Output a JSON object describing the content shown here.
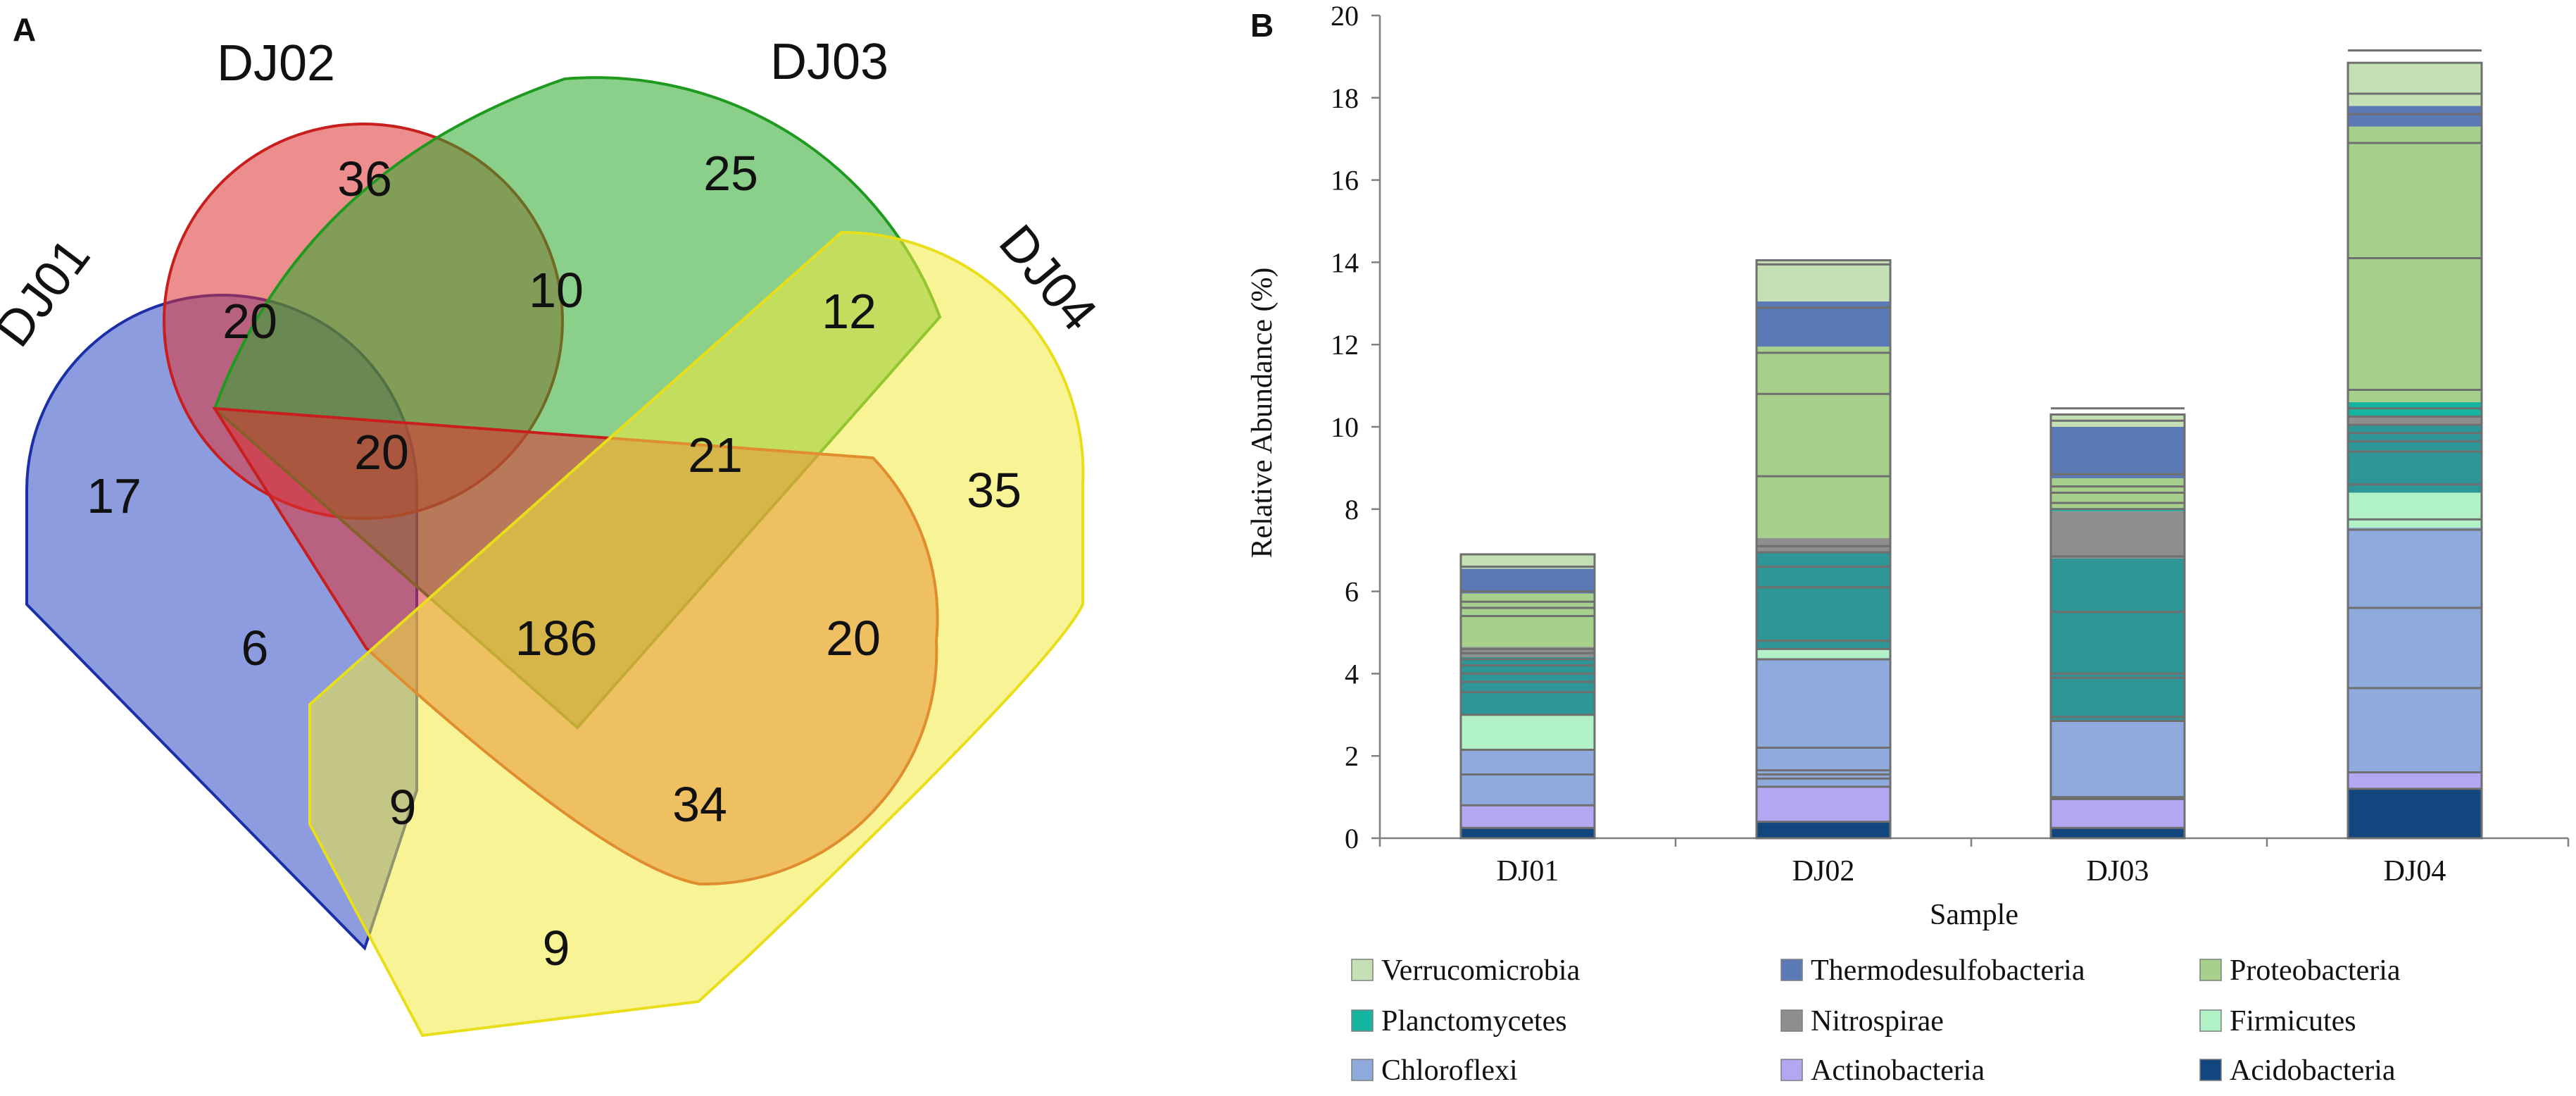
{
  "panel_a": {
    "label": "A",
    "sets": [
      {
        "name": "DJ01",
        "color": "#2f49c4",
        "stroke": "#1a2fa8"
      },
      {
        "name": "DJ02",
        "color": "#dd3232",
        "stroke": "#c81e1e"
      },
      {
        "name": "DJ03",
        "color": "#2aaa2a",
        "stroke": "#1f9a1f"
      },
      {
        "name": "DJ04",
        "color": "#f2ea3c",
        "stroke": "#e8de1a"
      }
    ],
    "region_counts": {
      "dj02_only": "36",
      "dj03_only": "25",
      "dj01_only": "17",
      "dj04_only": "35",
      "dj01_dj02": "20",
      "dj02_dj03": "10",
      "dj03_dj04": "12",
      "dj01_dj02_dj03": "20",
      "dj02_dj03_dj04": "21",
      "all_four": "186",
      "dj01_dj03": "6",
      "dj02_dj04": "20",
      "dj01_dj03_dj04": "9",
      "dj01_dj02_dj04": "34",
      "dj01_dj04": "9"
    }
  },
  "panel_b": {
    "label": "B"
  },
  "chart_data": {
    "type": "bar",
    "stacked": true,
    "title": "",
    "xlabel": "Sample",
    "ylabel": "Relative Abundance (%)",
    "ylim": [
      0,
      20
    ],
    "yticks": [
      0,
      2,
      4,
      6,
      8,
      10,
      12,
      14,
      16,
      18,
      20
    ],
    "ytick_labels": [
      "0",
      "2",
      "4",
      "6",
      "8",
      "10",
      "12",
      "14",
      "16",
      "18",
      "20"
    ],
    "grid": false,
    "legend_position": "bottom",
    "categories": [
      "DJ01",
      "DJ02",
      "DJ03",
      "DJ04"
    ],
    "series": [
      {
        "name": "Acidobacteria",
        "color": "#12467e",
        "values": [
          0.25,
          0.4,
          0.25,
          1.2
        ]
      },
      {
        "name": "Actinobacteria",
        "color": "#b4a6f0",
        "values": [
          0.55,
          0.85,
          0.7,
          0.4
        ]
      },
      {
        "name": "Chloroflexi",
        "color": "#8faadc",
        "values": [
          1.35,
          3.1,
          1.9,
          5.95
        ]
      },
      {
        "name": "Firmicutes",
        "color": "#b1f1c8",
        "values": [
          0.85,
          0.25,
          0.0,
          0.85
        ]
      },
      {
        "name": "Planctomycetes",
        "color": "#2e9696",
        "values": [
          1.4,
          2.35,
          3.95,
          1.65
        ]
      },
      {
        "name": "Nitrospirae",
        "color": "#8e8e8e",
        "values": [
          0.25,
          0.35,
          1.15,
          0.2
        ]
      },
      {
        "name": "Planctomycetes (2)",
        "color": "#14b4a0",
        "values": [
          0.0,
          0.0,
          0.05,
          0.35
        ]
      },
      {
        "name": "Proteobacteria",
        "color": "#a8d08d",
        "values": [
          1.3,
          4.65,
          0.75,
          6.7
        ]
      },
      {
        "name": "Thermodesulfobacteria",
        "color": "#5b79b4",
        "values": [
          0.6,
          1.1,
          1.25,
          0.5
        ]
      },
      {
        "name": "Verrucomicrobia",
        "color": "#c5e0b4",
        "values": [
          0.35,
          1.0,
          0.3,
          1.05
        ]
      }
    ],
    "inner_lines": [
      [
        0.25,
        0.8,
        1.55,
        2.15,
        3.0,
        3.55,
        3.8,
        4.0,
        4.2,
        4.35,
        4.5,
        4.6,
        5.4,
        5.6,
        5.75,
        6.0,
        6.6,
        6.9
      ],
      [
        0.4,
        1.25,
        1.45,
        1.55,
        1.65,
        2.2,
        4.35,
        4.6,
        4.8,
        6.1,
        6.6,
        6.95,
        7.1,
        8.8,
        10.8,
        11.8,
        12.9,
        13.95
      ],
      [
        0.25,
        0.95,
        1.0,
        2.85,
        2.95,
        3.9,
        4.0,
        5.5,
        6.85,
        8.0,
        8.15,
        8.4,
        8.55,
        8.85,
        10.15,
        10.45
      ],
      [
        1.2,
        1.6,
        3.65,
        5.6,
        7.5,
        7.75,
        8.6,
        9.4,
        9.65,
        9.85,
        10.05,
        10.25,
        10.45,
        10.9,
        14.1,
        16.9,
        17.6,
        18.1,
        19.15
      ]
    ],
    "legend": [
      {
        "name": "Verrucomicrobia",
        "color": "#c5e0b4"
      },
      {
        "name": "Thermodesulfobacteria",
        "color": "#5b79b4"
      },
      {
        "name": "Proteobacteria",
        "color": "#a8d08d"
      },
      {
        "name": "Planctomycetes",
        "color": "#14b4a0"
      },
      {
        "name": "Nitrospirae",
        "color": "#8e8e8e"
      },
      {
        "name": "Firmicutes",
        "color": "#b1f1c8"
      },
      {
        "name": "Chloroflexi",
        "color": "#8faadc"
      },
      {
        "name": "Actinobacteria",
        "color": "#b4a6f0"
      },
      {
        "name": "Acidobacteria",
        "color": "#12467e"
      }
    ]
  }
}
